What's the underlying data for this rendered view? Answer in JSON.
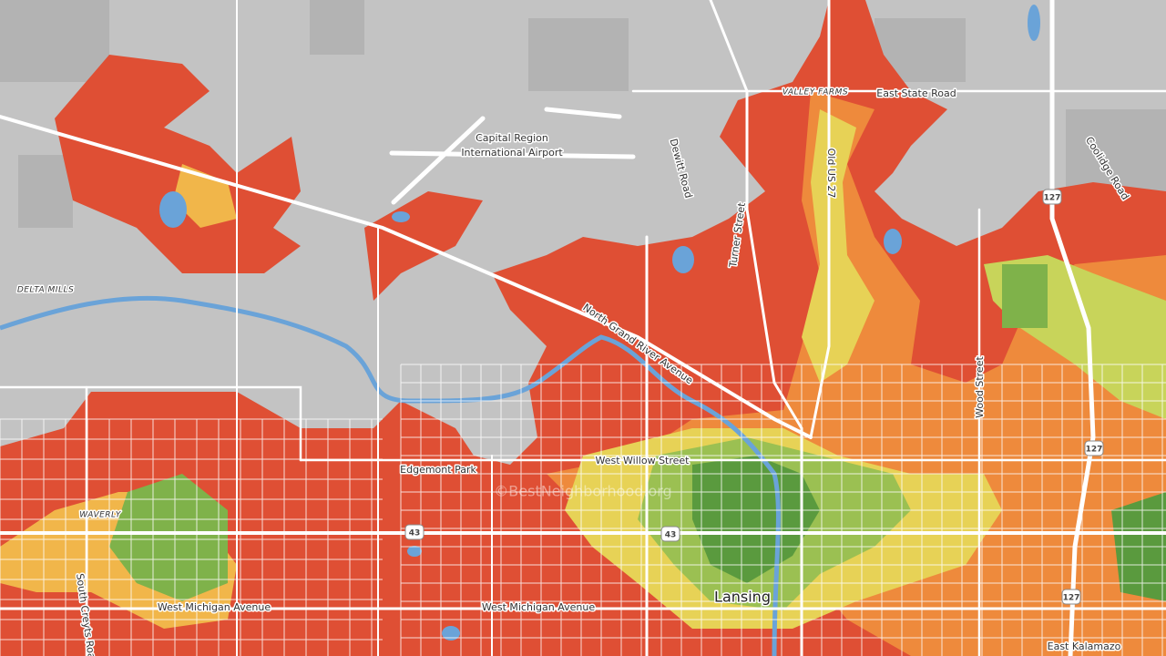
{
  "map": {
    "labels": [
      "Capital Region",
      "International Airport",
      "VALLEY FARMS",
      "East State Road",
      "Dewitt Road",
      "Old US 27",
      "Coolidge Road",
      "Turner Street",
      "DELTA MILLS",
      "North Grand River Avenue",
      "Wood Street",
      "West Willow Street",
      "Edgemont Park",
      "WAVERLY",
      "South Creyts Road",
      "West Michigan Avenue",
      "West Michigan Avenue",
      "Lansing",
      "East Kalamazo",
      "©BestNeighborhood.org"
    ],
    "shields": [
      "127",
      "127",
      "127",
      "43",
      "43"
    ]
  }
}
